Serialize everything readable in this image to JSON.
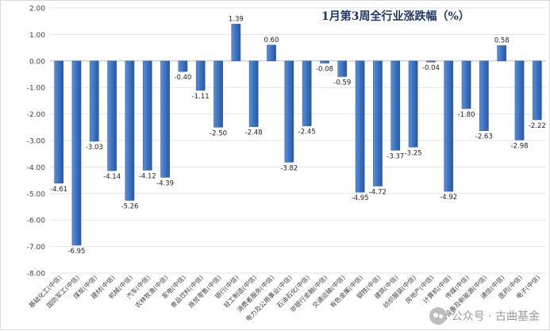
{
  "chart_data": {
    "type": "bar",
    "title": "1月第3周全行业涨跌幅（%）",
    "xlabel": "",
    "ylabel": "",
    "ylim": [
      -8.0,
      2.0
    ],
    "yticks": [
      "2.00",
      "1.00",
      "0.00",
      "-1.00",
      "-2.00",
      "-3.00",
      "-4.00",
      "-5.00",
      "-6.00",
      "-7.00",
      "-8.00"
    ],
    "grid": true,
    "legend": "none",
    "bar_color": "#3a6fbf",
    "categories": [
      "基础化工(中信)",
      "国防军工(中信)",
      "煤炭(中信)",
      "建材(中信)",
      "机械(中信)",
      "汽车(中信)",
      "农林牧渔(中信)",
      "家电(中信)",
      "食品饮料(中信)",
      "商贸零售(中信)",
      "银行(中信)",
      "轻工制造(中信)",
      "消费者服务(中信)",
      "电力及公用事业(中信)",
      "石油石化(中信)",
      "非银行金融(中信)",
      "交通运输(中信)",
      "有色金属(中信)",
      "钢铁(中信)",
      "建筑(中信)",
      "纺织服装(中信)",
      "房地产(中信)",
      "计算机(中信)",
      "传媒(中信)",
      "电力设备及新能源(中信)",
      "通信(中信)",
      "医药(中信)",
      "电子(中信)"
    ],
    "values": [
      -4.61,
      -6.95,
      -3.03,
      -4.14,
      -5.26,
      -4.12,
      -4.39,
      -0.4,
      -1.11,
      -2.5,
      1.39,
      -2.48,
      0.6,
      -3.82,
      -2.45,
      -0.08,
      -0.59,
      -4.95,
      -4.72,
      -3.37,
      -3.25,
      -0.04,
      -4.92,
      -1.8,
      -2.63,
      0.58,
      -2.98,
      -2.22
    ],
    "labels": [
      "-4.61",
      "-6.95",
      "-3.03",
      "-4.14",
      "-5.26",
      "-4.12",
      "-4.39",
      "-0.40",
      "-1.11",
      "-2.50",
      "1.39",
      "-2.48",
      "0.60",
      "-3.82",
      "-2.45",
      "-0.08",
      "-0.59",
      "-4.95",
      "-4.72",
      "-3.37",
      "-3.25",
      "-0.04",
      "-4.92",
      "-1.80",
      "-2.63",
      "0.58",
      "-2.98",
      "-2.22"
    ]
  },
  "watermark": {
    "text": "公众号 · 古曲基金"
  }
}
